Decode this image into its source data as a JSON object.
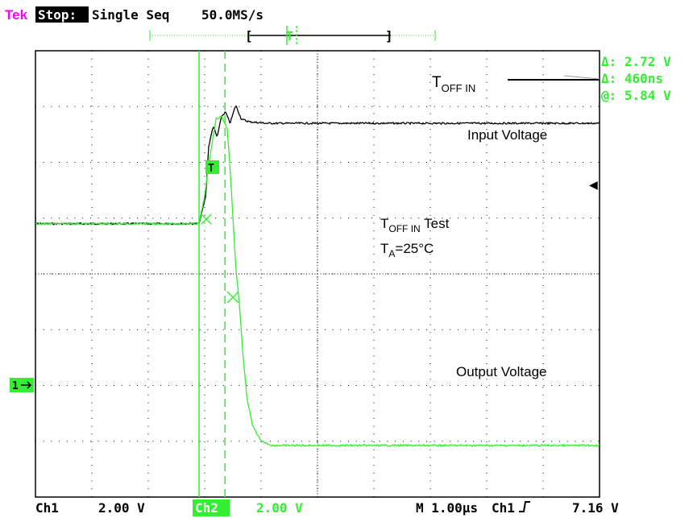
{
  "header": {
    "brand": "Tek",
    "state": "Stop:",
    "mode": "Single Seq",
    "sample_rate": "50.0MS/s"
  },
  "record": {
    "left_bracket": "[",
    "right_bracket": "]",
    "trigger_marker": "T"
  },
  "cursor_readout": {
    "delta_v": "Δ: 2.72 V",
    "delta_t": "Δ: 460ns",
    "at": "@: 5.84 V"
  },
  "trace_labels": {
    "toff_main": "T",
    "toff_sub": "OFF IN",
    "input": "Input Voltage",
    "output": "Output Voltage",
    "test_main": "T",
    "test_sub": "OFF IN",
    "test_suffix": " Test",
    "ta_main": "T",
    "ta_sub": "A",
    "ta_suffix": "=25°C"
  },
  "markers": {
    "ch1_ground": "1",
    "trigger_level_arrow": "◀",
    "trigger_badge": "T"
  },
  "footer": {
    "ch1": "Ch1",
    "ch1_scale": "2.00 V",
    "ch2": "Ch2",
    "ch2_scale": "2.00 V",
    "timebase": "M 1.00µs",
    "trigger_source": "Ch1",
    "trigger_slope": "╯",
    "trigger_level": "7.16 V"
  },
  "colors": {
    "brand": "#ff00ff",
    "ch2": "#33ee33",
    "ch1": "#000000",
    "grid": "#000000"
  },
  "chart_data": {
    "type": "line",
    "title": "",
    "xlabel": "",
    "ylabel": "",
    "xlim": [
      -2.1,
      7.9
    ],
    "ylim": [
      -19.6,
      12.4
    ],
    "x_unit": "µs",
    "y_unit": "V",
    "grid": true,
    "series": [
      {
        "name": "Input Voltage",
        "channel": "Ch1",
        "color": "#000000",
        "x": [
          -2.1,
          0.8,
          0.92,
          0.97,
          1.05,
          1.12,
          1.2,
          1.27,
          1.35,
          1.45,
          1.55,
          1.7,
          2.0,
          3.0,
          4.0,
          5.0,
          6.0,
          7.0,
          7.9
        ],
        "y": [
          0.0,
          0.0,
          2.0,
          5.5,
          7.0,
          6.2,
          7.7,
          8.0,
          7.2,
          8.5,
          7.5,
          7.3,
          7.2,
          7.2,
          7.2,
          7.2,
          7.2,
          7.2,
          7.2
        ]
      },
      {
        "name": "Output Voltage",
        "channel": "Ch2",
        "color": "#33ee33",
        "x": [
          -2.1,
          0.8,
          0.9,
          1.0,
          1.1,
          1.2,
          1.3,
          1.35,
          1.45,
          1.52,
          1.58,
          1.65,
          1.75,
          1.9,
          2.1,
          3.0,
          4.0,
          5.0,
          6.0,
          7.0,
          7.9
        ],
        "y": [
          0.0,
          0.0,
          2.0,
          5.0,
          7.5,
          7.7,
          6.8,
          4.0,
          -3.0,
          -6.0,
          -9.5,
          -12.5,
          -14.5,
          -15.6,
          -15.9,
          -15.9,
          -15.9,
          -15.9,
          -15.9,
          -15.9,
          -15.9
        ]
      }
    ],
    "cursors": {
      "t1": 0.8,
      "t2": 1.26,
      "delta_t_ns": 460,
      "delta_v": 2.72,
      "at_v": 5.84
    }
  }
}
